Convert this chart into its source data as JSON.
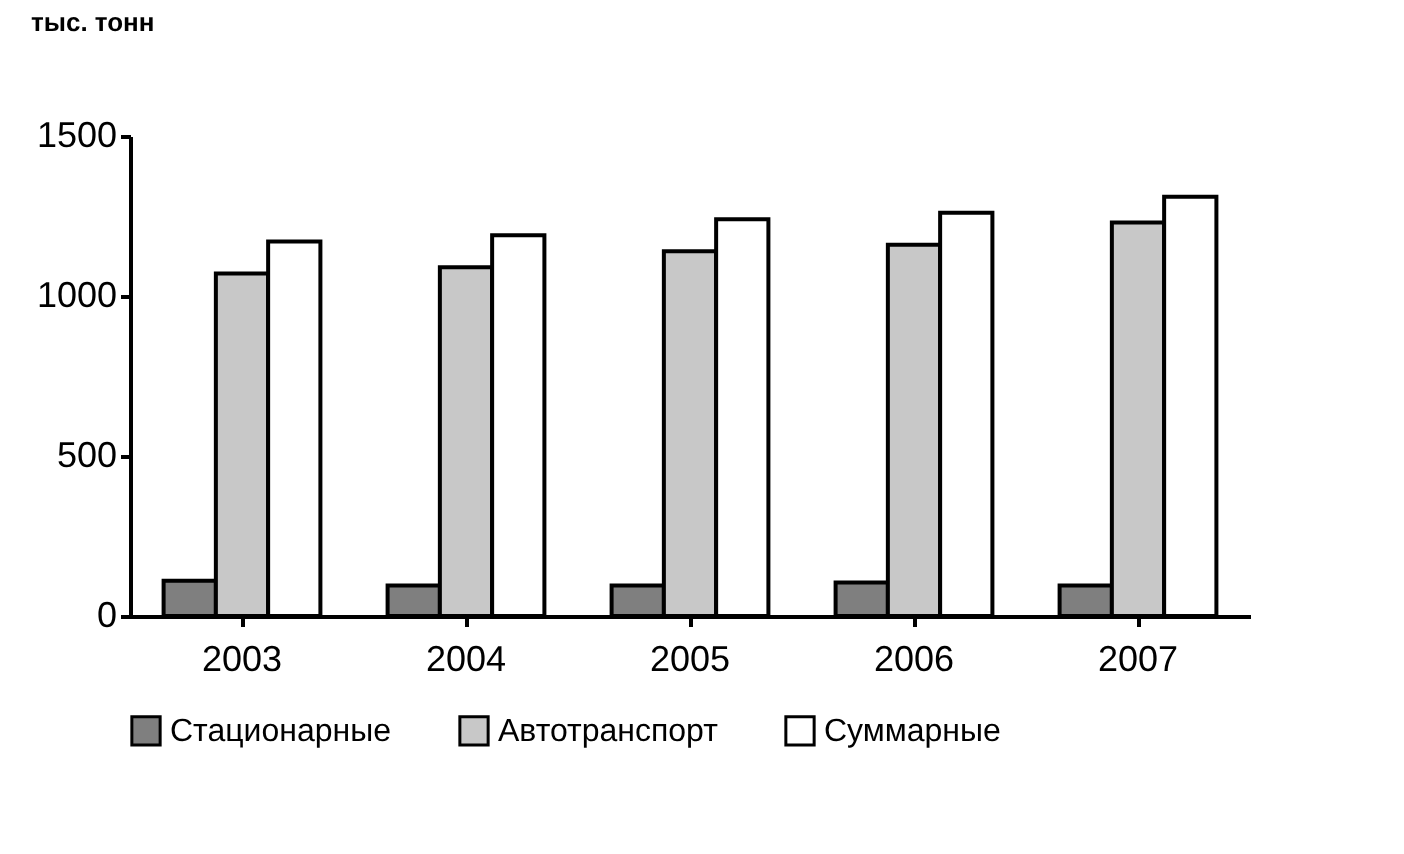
{
  "chart_data": {
    "type": "bar",
    "ylabel": "тыс. тонн",
    "categories": [
      "2003",
      "2004",
      "2005",
      "2006",
      "2007"
    ],
    "series": [
      {
        "name": "Стационарные",
        "color": "#7f7f7f",
        "values": [
          110,
          95,
          95,
          105,
          95
        ]
      },
      {
        "name": "Автотранспорт",
        "color": "#c8c8c8",
        "values": [
          1070,
          1090,
          1140,
          1160,
          1230
        ]
      },
      {
        "name": "Суммарные",
        "color": "#ffffff",
        "values": [
          1170,
          1190,
          1240,
          1260,
          1310
        ]
      }
    ],
    "ylim": [
      0,
      1500
    ],
    "yticks": [
      0,
      500,
      1000,
      1500
    ],
    "grid": false,
    "legend": "bottom"
  }
}
